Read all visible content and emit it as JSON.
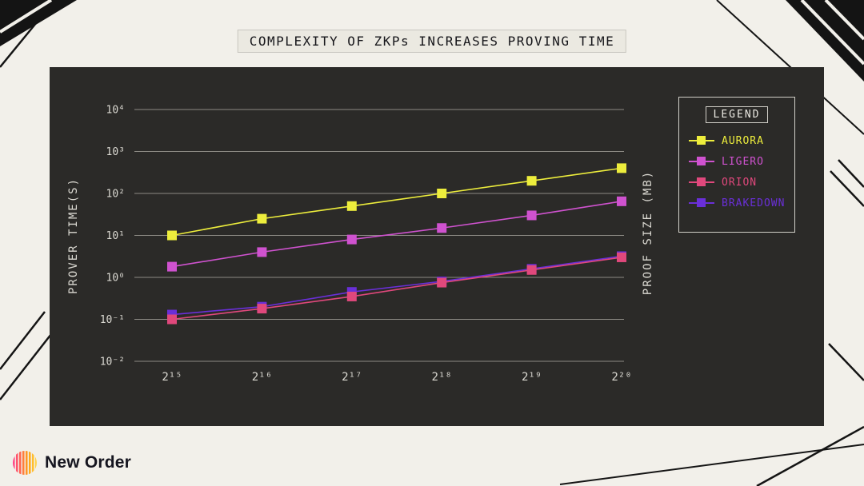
{
  "title": "COMPLEXITY OF ZKPs INCREASES PROVING TIME",
  "brand": {
    "name": "New Order"
  },
  "chart_data": {
    "type": "line",
    "scale": "log-log",
    "grid": "horizontal",
    "x_labels": [
      "2¹⁵",
      "2¹⁶",
      "2¹⁷",
      "2¹⁸",
      "2¹⁹",
      "2²⁰"
    ],
    "ylabel_left": "PROVER TIME(S)",
    "ylabel_right": "PROOF SIZE (MB)",
    "y_ticks": [
      "10⁴",
      "10³",
      "10²",
      "10¹",
      "10⁰",
      "10⁻¹",
      "10⁻²"
    ],
    "y_tick_values": [
      10000,
      1000,
      100,
      10,
      1,
      0.1,
      0.01
    ],
    "ylim": [
      0.01,
      10000
    ],
    "legend_title": "LEGEND",
    "legend_position": "right",
    "series": [
      {
        "name": "AURORA",
        "color": "#eded3c",
        "values": [
          10,
          25,
          50,
          100,
          200,
          400
        ]
      },
      {
        "name": "LIGERO",
        "color": "#cf52cf",
        "values": [
          1.8,
          4,
          8,
          15,
          30,
          65
        ]
      },
      {
        "name": "ORION",
        "color": "#e0487c",
        "values": [
          0.1,
          0.18,
          0.35,
          0.75,
          1.5,
          3.0
        ]
      },
      {
        "name": "BRAKEDOWN",
        "color": "#6a2fd8",
        "values": [
          0.13,
          0.2,
          0.45,
          0.8,
          1.6,
          3.2
        ]
      }
    ]
  }
}
